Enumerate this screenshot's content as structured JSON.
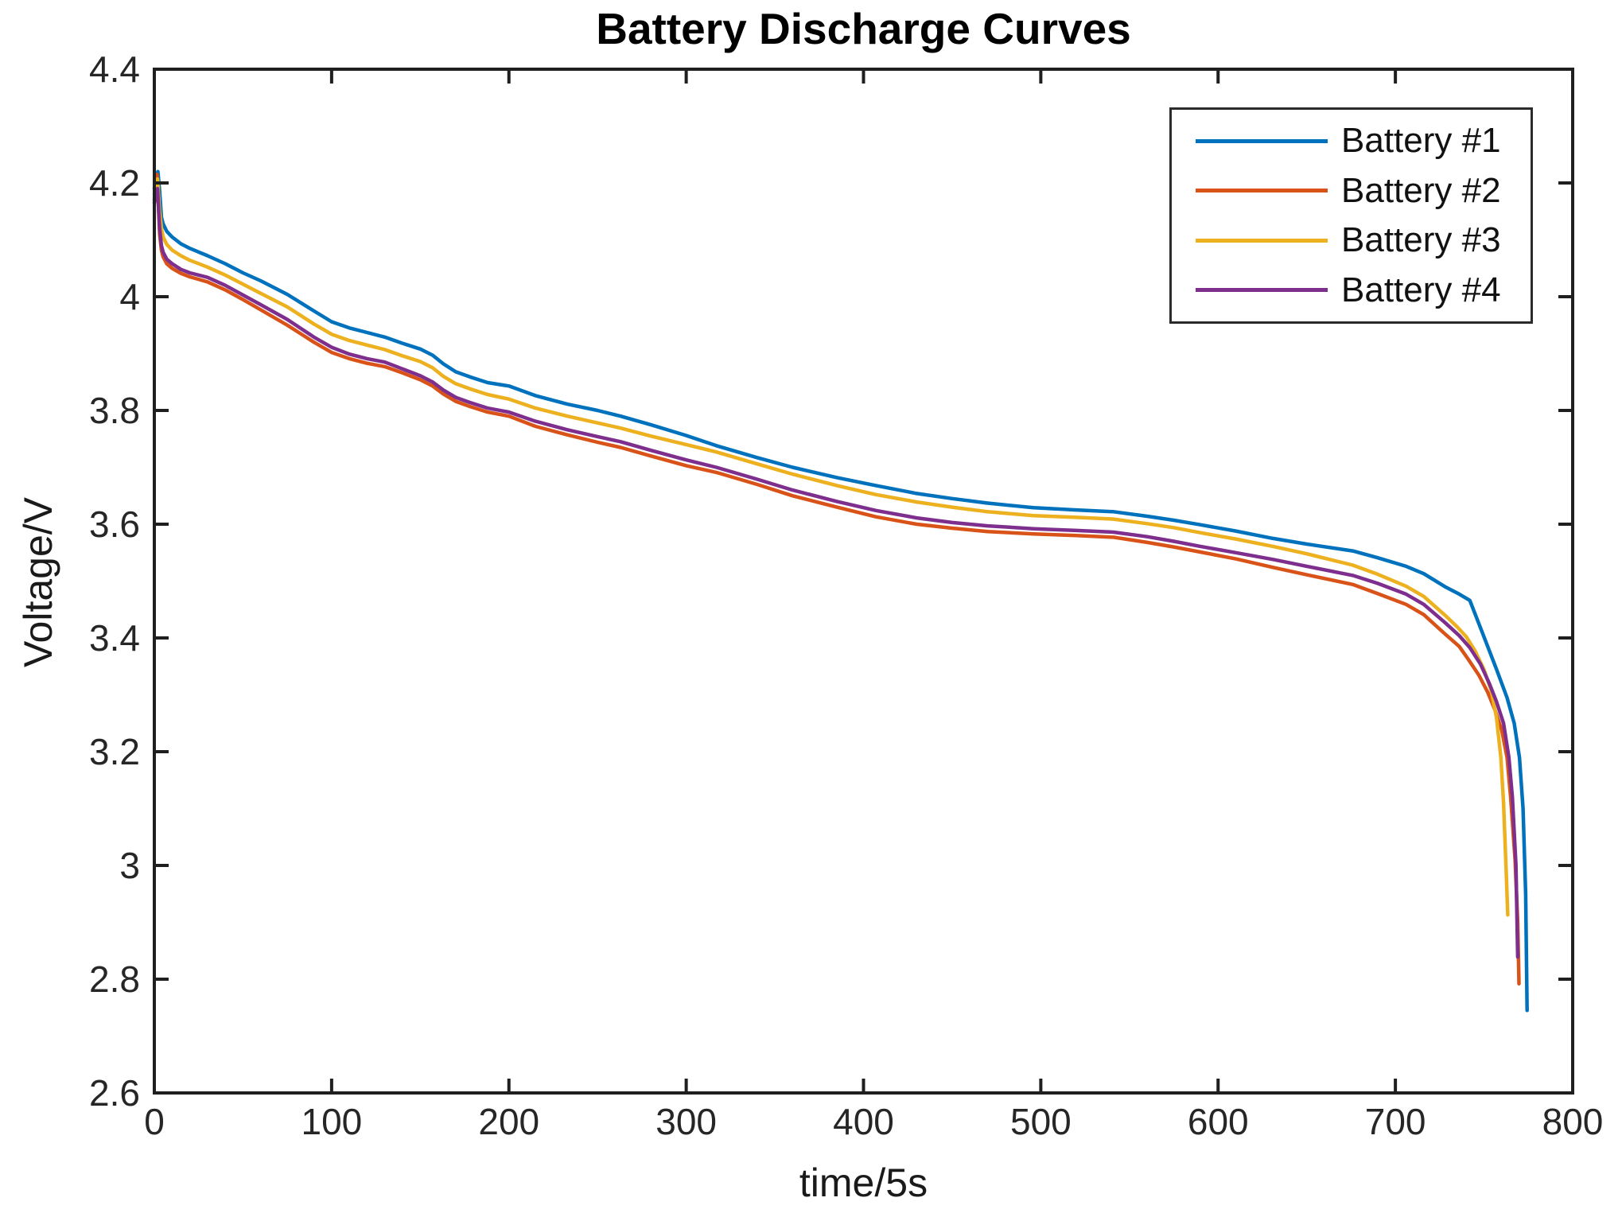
{
  "chart_data": {
    "type": "line",
    "title": "Battery Discharge Curves",
    "xlabel": "time/5s",
    "ylabel": "Voltage/V",
    "xlim": [
      0,
      800
    ],
    "ylim": [
      2.6,
      4.4
    ],
    "xticks": [
      0,
      100,
      200,
      300,
      400,
      500,
      600,
      700,
      800
    ],
    "yticks": [
      2.6,
      2.8,
      3,
      3.2,
      3.4,
      3.6,
      3.8,
      4,
      4.2,
      4.4
    ],
    "grid": false,
    "legend_position": "top-right-inside",
    "axis_color": "#1f1f1f",
    "tick_label_color": "#262626",
    "background": "#ffffff",
    "series": [
      {
        "name": "Battery #1",
        "color": "#0072BD",
        "points": [
          [
            0,
            4.19
          ],
          [
            1,
            4.212
          ],
          [
            2,
            4.22
          ],
          [
            3,
            4.185
          ],
          [
            4,
            4.14
          ],
          [
            5,
            4.128
          ],
          [
            7,
            4.115
          ],
          [
            10,
            4.105
          ],
          [
            15,
            4.093
          ],
          [
            20,
            4.085
          ],
          [
            30,
            4.072
          ],
          [
            40,
            4.058
          ],
          [
            50,
            4.042
          ],
          [
            60,
            4.028
          ],
          [
            75,
            4.004
          ],
          [
            90,
            3.975
          ],
          [
            100,
            3.956
          ],
          [
            110,
            3.945
          ],
          [
            120,
            3.937
          ],
          [
            130,
            3.929
          ],
          [
            140,
            3.918
          ],
          [
            150,
            3.908
          ],
          [
            157,
            3.897
          ],
          [
            163,
            3.882
          ],
          [
            170,
            3.868
          ],
          [
            178,
            3.859
          ],
          [
            188,
            3.849
          ],
          [
            200,
            3.843
          ],
          [
            215,
            3.826
          ],
          [
            233,
            3.811
          ],
          [
            250,
            3.8
          ],
          [
            263,
            3.79
          ],
          [
            280,
            3.775
          ],
          [
            300,
            3.756
          ],
          [
            317,
            3.738
          ],
          [
            340,
            3.717
          ],
          [
            360,
            3.7
          ],
          [
            385,
            3.682
          ],
          [
            407,
            3.668
          ],
          [
            430,
            3.654
          ],
          [
            450,
            3.645
          ],
          [
            470,
            3.637
          ],
          [
            496,
            3.629
          ],
          [
            520,
            3.625
          ],
          [
            541,
            3.622
          ],
          [
            560,
            3.614
          ],
          [
            575,
            3.607
          ],
          [
            590,
            3.599
          ],
          [
            610,
            3.588
          ],
          [
            631,
            3.575
          ],
          [
            650,
            3.565
          ],
          [
            676,
            3.553
          ],
          [
            690,
            3.541
          ],
          [
            706,
            3.526
          ],
          [
            716,
            3.513
          ],
          [
            728,
            3.49
          ],
          [
            736,
            3.477
          ],
          [
            742,
            3.466
          ],
          [
            749,
            3.41
          ],
          [
            757,
            3.345
          ],
          [
            763,
            3.295
          ],
          [
            767,
            3.25
          ],
          [
            770,
            3.19
          ],
          [
            772,
            3.1
          ],
          [
            773.5,
            2.95
          ],
          [
            774.3,
            2.745
          ]
        ]
      },
      {
        "name": "Battery #2",
        "color": "#D95319",
        "points": [
          [
            0,
            4.17
          ],
          [
            0.8,
            4.205
          ],
          [
            1.5,
            4.215
          ],
          [
            3,
            4.11
          ],
          [
            4,
            4.082
          ],
          [
            5,
            4.07
          ],
          [
            7,
            4.058
          ],
          [
            10,
            4.05
          ],
          [
            15,
            4.041
          ],
          [
            20,
            4.035
          ],
          [
            30,
            4.026
          ],
          [
            40,
            4.012
          ],
          [
            50,
            3.995
          ],
          [
            60,
            3.977
          ],
          [
            75,
            3.95
          ],
          [
            90,
            3.92
          ],
          [
            100,
            3.902
          ],
          [
            110,
            3.891
          ],
          [
            120,
            3.883
          ],
          [
            130,
            3.877
          ],
          [
            140,
            3.866
          ],
          [
            150,
            3.854
          ],
          [
            157,
            3.843
          ],
          [
            163,
            3.829
          ],
          [
            170,
            3.816
          ],
          [
            178,
            3.807
          ],
          [
            188,
            3.797
          ],
          [
            200,
            3.79
          ],
          [
            215,
            3.772
          ],
          [
            233,
            3.757
          ],
          [
            250,
            3.744
          ],
          [
            263,
            3.735
          ],
          [
            280,
            3.72
          ],
          [
            300,
            3.703
          ],
          [
            317,
            3.691
          ],
          [
            340,
            3.67
          ],
          [
            360,
            3.65
          ],
          [
            385,
            3.63
          ],
          [
            407,
            3.613
          ],
          [
            430,
            3.6
          ],
          [
            450,
            3.593
          ],
          [
            470,
            3.587
          ],
          [
            496,
            3.583
          ],
          [
            520,
            3.58
          ],
          [
            541,
            3.577
          ],
          [
            560,
            3.568
          ],
          [
            575,
            3.56
          ],
          [
            590,
            3.551
          ],
          [
            610,
            3.539
          ],
          [
            631,
            3.524
          ],
          [
            650,
            3.511
          ],
          [
            676,
            3.494
          ],
          [
            690,
            3.478
          ],
          [
            706,
            3.459
          ],
          [
            716,
            3.441
          ],
          [
            728,
            3.407
          ],
          [
            736,
            3.385
          ],
          [
            741,
            3.363
          ],
          [
            747,
            3.335
          ],
          [
            752,
            3.305
          ],
          [
            756,
            3.275
          ],
          [
            760,
            3.238
          ],
          [
            763,
            3.19
          ],
          [
            765,
            3.12
          ],
          [
            767.5,
            3.01
          ],
          [
            769,
            2.9
          ],
          [
            769.7,
            2.792
          ]
        ]
      },
      {
        "name": "Battery #3",
        "color": "#EDB120",
        "points": [
          [
            0,
            4.18
          ],
          [
            1,
            4.2
          ],
          [
            1.8,
            4.207
          ],
          [
            3,
            4.15
          ],
          [
            4,
            4.12
          ],
          [
            5,
            4.105
          ],
          [
            7,
            4.092
          ],
          [
            10,
            4.082
          ],
          [
            15,
            4.072
          ],
          [
            20,
            4.064
          ],
          [
            30,
            4.052
          ],
          [
            40,
            4.038
          ],
          [
            50,
            4.022
          ],
          [
            60,
            4.006
          ],
          [
            75,
            3.982
          ],
          [
            90,
            3.952
          ],
          [
            100,
            3.934
          ],
          [
            110,
            3.923
          ],
          [
            120,
            3.915
          ],
          [
            130,
            3.907
          ],
          [
            140,
            3.896
          ],
          [
            150,
            3.886
          ],
          [
            157,
            3.875
          ],
          [
            163,
            3.86
          ],
          [
            170,
            3.847
          ],
          [
            178,
            3.838
          ],
          [
            188,
            3.828
          ],
          [
            200,
            3.82
          ],
          [
            215,
            3.804
          ],
          [
            233,
            3.79
          ],
          [
            250,
            3.778
          ],
          [
            263,
            3.769
          ],
          [
            280,
            3.755
          ],
          [
            300,
            3.74
          ],
          [
            317,
            3.727
          ],
          [
            340,
            3.706
          ],
          [
            360,
            3.688
          ],
          [
            385,
            3.668
          ],
          [
            407,
            3.652
          ],
          [
            430,
            3.639
          ],
          [
            450,
            3.63
          ],
          [
            470,
            3.622
          ],
          [
            496,
            3.615
          ],
          [
            520,
            3.612
          ],
          [
            541,
            3.609
          ],
          [
            560,
            3.601
          ],
          [
            575,
            3.594
          ],
          [
            590,
            3.585
          ],
          [
            610,
            3.574
          ],
          [
            631,
            3.561
          ],
          [
            650,
            3.548
          ],
          [
            676,
            3.528
          ],
          [
            690,
            3.512
          ],
          [
            706,
            3.491
          ],
          [
            716,
            3.473
          ],
          [
            728,
            3.44
          ],
          [
            735,
            3.419
          ],
          [
            740,
            3.402
          ],
          [
            745,
            3.377
          ],
          [
            750,
            3.344
          ],
          [
            754,
            3.308
          ],
          [
            757,
            3.26
          ],
          [
            759.5,
            3.19
          ],
          [
            761,
            3.11
          ],
          [
            762.5,
            2.99
          ],
          [
            763.4,
            2.913
          ]
        ]
      },
      {
        "name": "Battery #4",
        "color": "#7E2F8E",
        "points": [
          [
            0,
            4.165
          ],
          [
            1,
            4.185
          ],
          [
            1.8,
            4.19
          ],
          [
            3,
            4.12
          ],
          [
            4,
            4.09
          ],
          [
            5,
            4.078
          ],
          [
            7,
            4.066
          ],
          [
            10,
            4.058
          ],
          [
            15,
            4.048
          ],
          [
            20,
            4.042
          ],
          [
            30,
            4.034
          ],
          [
            40,
            4.02
          ],
          [
            50,
            4.003
          ],
          [
            60,
            3.986
          ],
          [
            75,
            3.96
          ],
          [
            90,
            3.929
          ],
          [
            100,
            3.911
          ],
          [
            110,
            3.899
          ],
          [
            120,
            3.891
          ],
          [
            130,
            3.885
          ],
          [
            140,
            3.873
          ],
          [
            150,
            3.861
          ],
          [
            157,
            3.85
          ],
          [
            163,
            3.836
          ],
          [
            170,
            3.823
          ],
          [
            178,
            3.814
          ],
          [
            188,
            3.804
          ],
          [
            200,
            3.797
          ],
          [
            215,
            3.781
          ],
          [
            233,
            3.766
          ],
          [
            250,
            3.754
          ],
          [
            263,
            3.745
          ],
          [
            280,
            3.73
          ],
          [
            300,
            3.713
          ],
          [
            317,
            3.7
          ],
          [
            340,
            3.679
          ],
          [
            360,
            3.66
          ],
          [
            385,
            3.64
          ],
          [
            407,
            3.624
          ],
          [
            430,
            3.611
          ],
          [
            450,
            3.603
          ],
          [
            470,
            3.597
          ],
          [
            496,
            3.592
          ],
          [
            520,
            3.589
          ],
          [
            541,
            3.586
          ],
          [
            560,
            3.578
          ],
          [
            575,
            3.57
          ],
          [
            590,
            3.561
          ],
          [
            610,
            3.55
          ],
          [
            631,
            3.538
          ],
          [
            650,
            3.526
          ],
          [
            676,
            3.51
          ],
          [
            690,
            3.496
          ],
          [
            706,
            3.477
          ],
          [
            716,
            3.459
          ],
          [
            728,
            3.427
          ],
          [
            736,
            3.404
          ],
          [
            742,
            3.383
          ],
          [
            748,
            3.354
          ],
          [
            753,
            3.32
          ],
          [
            757,
            3.288
          ],
          [
            761,
            3.25
          ],
          [
            764,
            3.19
          ],
          [
            766,
            3.12
          ],
          [
            768,
            3.0
          ],
          [
            769,
            2.839
          ]
        ]
      }
    ]
  }
}
